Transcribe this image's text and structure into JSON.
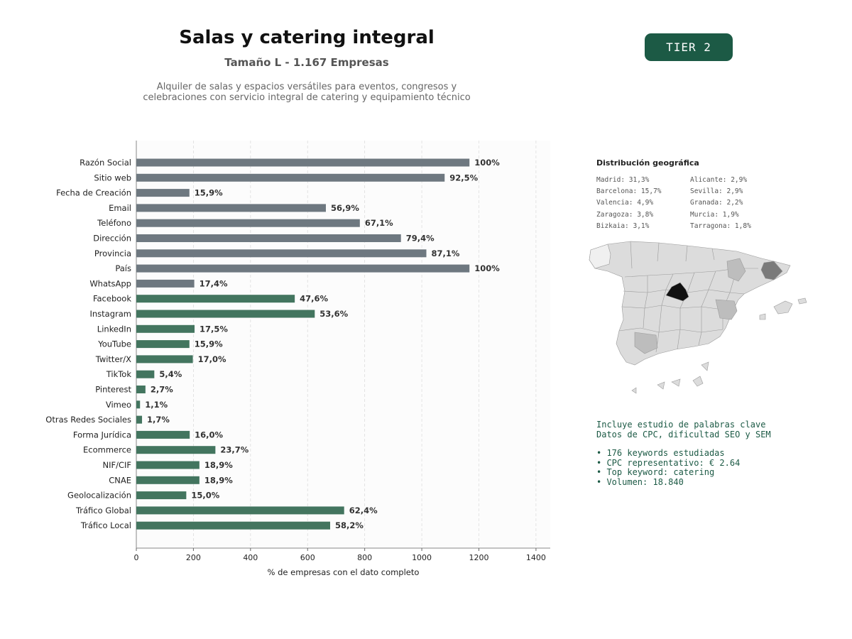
{
  "header": {
    "title": "Salas y catering integral",
    "subtitle": "Tamaño L - 1.167 Empresas",
    "description_lines": [
      "Alquiler de salas y espacios versátiles para eventos, congresos y",
      "celebraciones con servicio integral de catering y equipamiento técnico"
    ],
    "tier_label": "TIER 2"
  },
  "chart_data": {
    "type": "bar",
    "orientation": "horizontal",
    "xlabel": "% de empresas con el dato completo",
    "xlim": [
      0,
      1450
    ],
    "xticks": [
      0,
      200,
      400,
      600,
      800,
      1000,
      1200,
      1400
    ],
    "grid": true,
    "colors": {
      "basic": "#6e7880",
      "extended": "#43755f"
    },
    "bars": [
      {
        "category": "Razón Social",
        "value": 1167,
        "label": "100%",
        "group": "basic"
      },
      {
        "category": "Sitio web",
        "value": 1080,
        "label": "92,5%",
        "group": "basic"
      },
      {
        "category": "Fecha de Creación",
        "value": 186,
        "label": "15,9%",
        "group": "basic"
      },
      {
        "category": "Email",
        "value": 664,
        "label": "56,9%",
        "group": "basic"
      },
      {
        "category": "Teléfono",
        "value": 783,
        "label": "67,1%",
        "group": "basic"
      },
      {
        "category": "Dirección",
        "value": 927,
        "label": "79,4%",
        "group": "basic"
      },
      {
        "category": "Provincia",
        "value": 1016,
        "label": "87,1%",
        "group": "basic"
      },
      {
        "category": "País",
        "value": 1167,
        "label": "100%",
        "group": "basic"
      },
      {
        "category": "WhatsApp",
        "value": 203,
        "label": "17,4%",
        "group": "basic"
      },
      {
        "category": "Facebook",
        "value": 555,
        "label": "47,6%",
        "group": "extended"
      },
      {
        "category": "Instagram",
        "value": 625,
        "label": "53,6%",
        "group": "extended"
      },
      {
        "category": "LinkedIn",
        "value": 204,
        "label": "17,5%",
        "group": "extended"
      },
      {
        "category": "YouTube",
        "value": 186,
        "label": "15,9%",
        "group": "extended"
      },
      {
        "category": "Twitter/X",
        "value": 198,
        "label": "17,0%",
        "group": "extended"
      },
      {
        "category": "TikTok",
        "value": 63,
        "label": "5,4%",
        "group": "extended"
      },
      {
        "category": "Pinterest",
        "value": 32,
        "label": "2,7%",
        "group": "extended"
      },
      {
        "category": "Vimeo",
        "value": 13,
        "label": "1,1%",
        "group": "extended"
      },
      {
        "category": "Otras Redes Sociales",
        "value": 20,
        "label": "1,7%",
        "group": "extended"
      },
      {
        "category": "Forma Jurídica",
        "value": 187,
        "label": "16,0%",
        "group": "extended"
      },
      {
        "category": "Ecommerce",
        "value": 277,
        "label": "23,7%",
        "group": "extended"
      },
      {
        "category": "NIF/CIF",
        "value": 221,
        "label": "18,9%",
        "group": "extended"
      },
      {
        "category": "CNAE",
        "value": 221,
        "label": "18,9%",
        "group": "extended"
      },
      {
        "category": "Geolocalización",
        "value": 175,
        "label": "15,0%",
        "group": "extended"
      },
      {
        "category": "Tráfico Global",
        "value": 728,
        "label": "62,4%",
        "group": "extended"
      },
      {
        "category": "Tráfico Local",
        "value": 679,
        "label": "58,2%",
        "group": "extended"
      }
    ]
  },
  "geo": {
    "title": "Distribución geográfica",
    "col1": [
      "Madrid: 31,3%",
      "Barcelona: 15,7%",
      "Valencia: 4,9%",
      "Zaragoza: 3,8%",
      "Bizkaia: 3,1%"
    ],
    "col2": [
      "Alicante: 2,9%",
      "Sevilla: 2,9%",
      "Granada: 2,2%",
      "Murcia: 1,9%",
      "Tarragona: 1,8%"
    ],
    "map_colors": {
      "base": "#dcdcdc",
      "stroke": "#9a9a9a",
      "madrid": "#111111",
      "barcelona": "#7a7a7a",
      "valencia": "#bdbdbd",
      "light": "#f0f0f0"
    }
  },
  "keywords": {
    "lines_top": [
      "Incluye estudio de palabras clave",
      "Datos de CPC, dificultad SEO y SEM"
    ],
    "bullets": [
      "• 176 keywords estudiadas",
      "• CPC representativo: € 2.64",
      "• Top keyword: catering",
      "• Volumen: 18.840"
    ]
  }
}
